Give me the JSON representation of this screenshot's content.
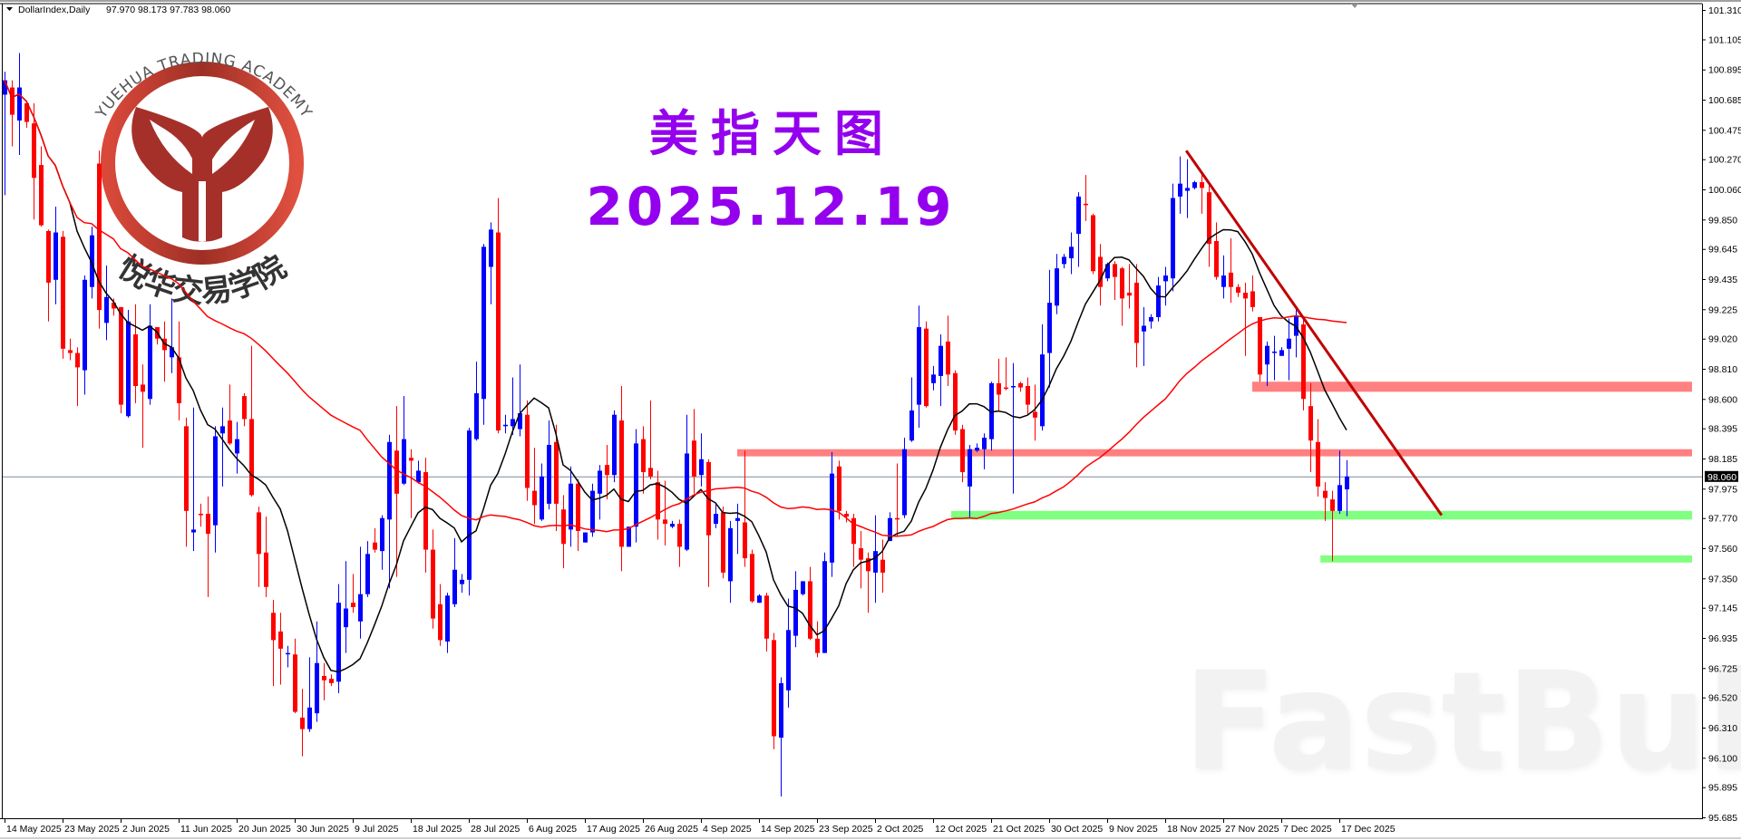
{
  "header": {
    "symbol": "DollarIndex,Daily",
    "ohlc_text": "97.970 98.173 97.783 98.060",
    "dropdown_icon": "triangle-down-icon"
  },
  "overlay": {
    "title_cn": "美指天图",
    "date": "2025.12.19",
    "title_color": "#9400ee",
    "logo_text_en": "YUEHUA TRADING ACADEMY",
    "logo_text_cn": "悦华交易学院",
    "logo_color": "#b5382c",
    "watermark": "FastBull"
  },
  "chart_data": {
    "type": "candlestick",
    "title": "",
    "xlabel": "",
    "ylabel": "",
    "ylim": [
      95.685,
      101.31
    ],
    "grid": false,
    "current_price": "98.060",
    "colors": {
      "bull": "#0000ff",
      "bear": "#ff0000",
      "ma_fast": "#000000",
      "ma_slow": "#ff0000",
      "resistance": "#ff8080",
      "support": "#80ff80",
      "trendline": "#c00000",
      "price_line": "#7f8c99"
    },
    "y_ticks": [
      "101.310",
      "101.105",
      "100.895",
      "100.685",
      "100.475",
      "100.270",
      "100.060",
      "99.850",
      "99.645",
      "99.435",
      "99.225",
      "99.020",
      "98.810",
      "98.600",
      "98.395",
      "98.185",
      "97.975",
      "97.770",
      "97.560",
      "97.350",
      "97.145",
      "96.935",
      "96.725",
      "96.520",
      "96.310",
      "96.100",
      "95.895",
      "95.685"
    ],
    "x_labels": [
      "14 May 2025",
      "23 May 2025",
      "2 Jun 2025",
      "11 Jun 2025",
      "20 Jun 2025",
      "30 Jun 2025",
      "9 Jul 2025",
      "18 Jul 2025",
      "28 Jul 2025",
      "6 Aug 2025",
      "17 Aug 2025",
      "26 Aug 2025",
      "4 Sep 2025",
      "14 Sep 2025",
      "23 Sep 2025",
      "2 Oct 2025",
      "12 Oct 2025",
      "21 Oct 2025",
      "30 Oct 2025",
      "9 Nov 2025",
      "18 Nov 2025",
      "27 Nov 2025",
      "7 Dec 2025",
      "17 Dec 2025"
    ],
    "ohlc_fields": [
      "open",
      "high",
      "low",
      "close"
    ],
    "ohlc": [
      [
        100.72,
        100.88,
        100.02,
        100.82
      ],
      [
        100.77,
        100.82,
        100.36,
        100.58
      ],
      [
        100.54,
        101.01,
        100.3,
        100.77
      ],
      [
        100.66,
        100.67,
        100.49,
        100.53
      ],
      [
        100.52,
        100.66,
        99.85,
        100.14
      ],
      [
        100.23,
        100.36,
        99.8,
        99.81
      ],
      [
        99.77,
        99.78,
        99.14,
        99.41
      ],
      [
        99.43,
        99.94,
        99.26,
        99.76
      ],
      [
        99.73,
        99.77,
        98.88,
        98.95
      ],
      [
        98.94,
        99.02,
        98.87,
        98.92
      ],
      [
        98.92,
        98.96,
        98.55,
        98.82
      ],
      [
        98.8,
        99.46,
        98.63,
        99.43
      ],
      [
        99.38,
        99.8,
        99.3,
        99.74
      ],
      [
        100.24,
        100.33,
        99.09,
        99.22
      ],
      [
        99.13,
        99.53,
        99.01,
        99.31
      ],
      [
        99.27,
        99.3,
        99.18,
        99.23
      ],
      [
        99.24,
        99.24,
        98.5,
        98.56
      ],
      [
        98.48,
        99.22,
        98.47,
        99.14
      ],
      [
        99.05,
        99.26,
        98.57,
        98.69
      ],
      [
        98.7,
        98.84,
        98.26,
        98.65
      ],
      [
        98.6,
        99.26,
        98.56,
        99.11
      ],
      [
        99.1,
        99.1,
        98.98,
        99.02
      ],
      [
        99.02,
        99.14,
        98.72,
        98.94
      ],
      [
        98.89,
        99.3,
        98.78,
        98.96
      ],
      [
        98.89,
        99.14,
        98.45,
        98.57
      ],
      [
        98.41,
        98.47,
        97.57,
        97.82
      ],
      [
        97.67,
        98.54,
        97.54,
        97.69
      ],
      [
        97.8,
        97.87,
        97.71,
        97.79
      ],
      [
        97.8,
        97.92,
        97.22,
        97.66
      ],
      [
        97.72,
        98.41,
        97.53,
        98.34
      ],
      [
        98.36,
        98.54,
        97.99,
        98.41
      ],
      [
        98.45,
        98.7,
        98.28,
        98.29
      ],
      [
        98.22,
        98.44,
        98.08,
        98.32
      ],
      [
        98.62,
        98.64,
        98.41,
        98.46
      ],
      [
        98.46,
        98.97,
        97.92,
        97.93
      ],
      [
        97.81,
        97.85,
        97.29,
        97.52
      ],
      [
        97.53,
        97.78,
        97.22,
        97.29
      ],
      [
        97.11,
        97.2,
        96.6,
        96.92
      ],
      [
        96.98,
        97.11,
        96.61,
        96.86
      ],
      [
        96.83,
        96.88,
        96.73,
        96.83
      ],
      [
        96.82,
        96.93,
        96.41,
        96.42
      ],
      [
        96.38,
        96.58,
        96.11,
        96.3
      ],
      [
        96.3,
        96.8,
        96.28,
        96.45
      ],
      [
        96.41,
        97.05,
        96.35,
        96.76
      ],
      [
        96.67,
        96.76,
        96.5,
        96.64
      ],
      [
        96.65,
        96.68,
        96.6,
        96.62
      ],
      [
        96.63,
        97.31,
        96.55,
        97.18
      ],
      [
        97.01,
        97.47,
        96.83,
        97.14
      ],
      [
        97.18,
        97.38,
        97.11,
        97.15
      ],
      [
        97.05,
        97.57,
        96.93,
        97.24
      ],
      [
        97.24,
        97.61,
        97.22,
        97.52
      ],
      [
        97.6,
        97.7,
        97.53,
        97.55
      ],
      [
        97.54,
        97.79,
        97.41,
        97.77
      ],
      [
        97.76,
        98.35,
        97.28,
        98.3
      ],
      [
        98.24,
        98.55,
        97.36,
        97.94
      ],
      [
        98.01,
        98.62,
        98.0,
        98.32
      ],
      [
        98.19,
        98.25,
        97.77,
        98.17
      ],
      [
        98.02,
        98.17,
        98.01,
        98.1
      ],
      [
        98.09,
        98.19,
        97.39,
        97.55
      ],
      [
        97.55,
        97.69,
        97.0,
        97.07
      ],
      [
        97.17,
        97.31,
        96.88,
        96.92
      ],
      [
        96.91,
        97.25,
        96.83,
        97.23
      ],
      [
        97.17,
        97.63,
        97.15,
        97.41
      ],
      [
        97.31,
        97.38,
        97.25,
        97.34
      ],
      [
        97.34,
        98.4,
        97.23,
        98.38
      ],
      [
        98.32,
        98.86,
        98.31,
        98.64
      ],
      [
        98.6,
        99.68,
        98.42,
        99.66
      ],
      [
        99.52,
        99.83,
        99.26,
        99.78
      ],
      [
        99.76,
        100.0,
        98.36,
        98.38
      ],
      [
        98.41,
        98.49,
        98.36,
        98.42
      ],
      [
        98.41,
        98.75,
        98.35,
        98.46
      ],
      [
        98.39,
        98.84,
        98.34,
        98.5
      ],
      [
        98.49,
        98.59,
        97.89,
        97.98
      ],
      [
        97.96,
        98.26,
        97.73,
        97.86
      ],
      [
        97.76,
        98.15,
        97.75,
        98.06
      ],
      [
        97.87,
        98.45,
        97.83,
        98.28
      ],
      [
        98.3,
        98.42,
        97.68,
        97.87
      ],
      [
        97.83,
        97.93,
        97.42,
        97.59
      ],
      [
        97.69,
        98.13,
        97.57,
        98.01
      ],
      [
        98.01,
        98.04,
        97.54,
        97.68
      ],
      [
        97.6,
        97.67,
        97.6,
        97.67
      ],
      [
        97.67,
        98.01,
        97.64,
        97.96
      ],
      [
        97.94,
        98.14,
        97.76,
        98.1
      ],
      [
        98.14,
        98.28,
        97.9,
        98.07
      ],
      [
        98.07,
        98.52,
        98.02,
        98.49
      ],
      [
        98.45,
        98.69,
        97.4,
        97.57
      ],
      [
        97.57,
        97.71,
        97.57,
        97.71
      ],
      [
        97.71,
        98.39,
        97.6,
        98.29
      ],
      [
        98.32,
        98.41,
        97.94,
        98.09
      ],
      [
        98.12,
        98.59,
        98.04,
        98.06
      ],
      [
        98.02,
        98.1,
        97.62,
        97.76
      ],
      [
        97.76,
        98.03,
        97.58,
        97.73
      ],
      [
        97.71,
        97.75,
        97.7,
        97.73
      ],
      [
        97.73,
        97.76,
        97.43,
        97.57
      ],
      [
        97.55,
        98.49,
        97.54,
        98.22
      ],
      [
        98.31,
        98.53,
        97.94,
        98.06
      ],
      [
        98.07,
        98.36,
        97.99,
        98.18
      ],
      [
        98.16,
        98.18,
        97.29,
        97.65
      ],
      [
        97.73,
        97.87,
        97.7,
        97.8
      ],
      [
        97.81,
        97.85,
        97.35,
        97.39
      ],
      [
        97.33,
        97.75,
        97.18,
        97.7
      ],
      [
        97.75,
        97.87,
        97.52,
        97.77
      ],
      [
        97.74,
        98.24,
        97.43,
        97.49
      ],
      [
        97.52,
        97.55,
        97.18,
        97.19
      ],
      [
        97.18,
        97.24,
        97.18,
        97.23
      ],
      [
        97.23,
        97.25,
        96.84,
        96.93
      ],
      [
        96.92,
        96.97,
        96.16,
        96.25
      ],
      [
        96.24,
        96.66,
        95.83,
        96.62
      ],
      [
        96.57,
        97.21,
        96.45,
        96.99
      ],
      [
        96.95,
        97.4,
        96.87,
        97.27
      ],
      [
        97.24,
        97.33,
        97.23,
        97.33
      ],
      [
        97.33,
        97.43,
        96.92,
        96.93
      ],
      [
        96.93,
        97.05,
        96.8,
        96.83
      ],
      [
        96.83,
        97.53,
        96.83,
        97.47
      ],
      [
        97.46,
        98.23,
        97.36,
        98.08
      ],
      [
        98.13,
        98.17,
        97.76,
        97.82
      ],
      [
        97.8,
        97.82,
        97.74,
        97.78
      ],
      [
        97.77,
        97.8,
        97.43,
        97.59
      ],
      [
        97.56,
        97.68,
        97.28,
        97.48
      ],
      [
        97.49,
        97.53,
        97.11,
        97.4
      ],
      [
        97.39,
        97.79,
        97.18,
        97.54
      ],
      [
        97.48,
        97.62,
        97.25,
        97.39
      ],
      [
        97.61,
        97.81,
        97.61,
        97.77
      ],
      [
        97.77,
        98.15,
        97.64,
        97.76
      ],
      [
        97.79,
        98.33,
        97.77,
        98.25
      ],
      [
        98.31,
        98.75,
        98.3,
        98.52
      ],
      [
        98.56,
        99.25,
        98.4,
        99.1
      ],
      [
        99.09,
        99.14,
        98.54,
        98.55
      ],
      [
        98.71,
        98.83,
        98.66,
        98.77
      ],
      [
        98.76,
        99.05,
        98.55,
        98.97
      ],
      [
        99.0,
        99.18,
        98.69,
        98.77
      ],
      [
        98.78,
        98.8,
        98.35,
        98.38
      ],
      [
        98.39,
        98.42,
        98.02,
        98.09
      ],
      [
        97.99,
        98.28,
        97.77,
        98.25
      ],
      [
        98.24,
        98.29,
        98.23,
        98.26
      ],
      [
        98.25,
        98.36,
        98.11,
        98.33
      ],
      [
        98.32,
        98.72,
        98.24,
        98.71
      ],
      [
        98.71,
        98.88,
        98.51,
        98.63
      ],
      [
        98.68,
        98.89,
        98.66,
        98.67
      ],
      [
        98.69,
        98.85,
        97.94,
        98.69
      ],
      [
        98.71,
        98.72,
        98.65,
        98.68
      ],
      [
        98.69,
        98.75,
        98.49,
        98.56
      ],
      [
        98.51,
        98.7,
        98.31,
        98.47
      ],
      [
        98.41,
        99.12,
        98.38,
        98.91
      ],
      [
        98.92,
        99.5,
        98.68,
        99.27
      ],
      [
        99.25,
        99.61,
        99.19,
        99.51
      ],
      [
        99.54,
        99.61,
        99.51,
        99.59
      ],
      [
        99.58,
        99.76,
        99.47,
        99.66
      ],
      [
        99.75,
        100.04,
        99.52,
        100.01
      ],
      [
        99.96,
        100.16,
        99.84,
        99.95
      ],
      [
        99.88,
        99.89,
        99.47,
        99.49
      ],
      [
        99.59,
        99.68,
        99.25,
        99.38
      ],
      [
        99.44,
        99.55,
        99.42,
        99.54
      ],
      [
        99.54,
        99.56,
        99.29,
        99.45
      ],
      [
        99.51,
        99.52,
        99.11,
        99.3
      ],
      [
        99.34,
        99.54,
        99.23,
        99.32
      ],
      [
        99.41,
        99.54,
        98.82,
        98.99
      ],
      [
        99.07,
        99.24,
        98.83,
        99.11
      ],
      [
        99.14,
        99.19,
        99.09,
        99.17
      ],
      [
        99.17,
        99.45,
        99.14,
        99.39
      ],
      [
        99.42,
        99.52,
        99.25,
        99.46
      ],
      [
        99.44,
        100.1,
        99.35,
        100.0
      ],
      [
        100.01,
        100.29,
        99.89,
        100.1
      ],
      [
        100.05,
        100.27,
        99.86,
        100.07
      ],
      [
        100.07,
        100.12,
        100.06,
        100.11
      ],
      [
        100.11,
        100.17,
        99.89,
        100.07
      ],
      [
        100.04,
        100.11,
        99.52,
        99.68
      ],
      [
        99.7,
        99.83,
        99.43,
        99.45
      ],
      [
        99.38,
        99.6,
        99.3,
        99.46
      ],
      [
        99.48,
        99.72,
        99.27,
        99.38
      ],
      [
        99.38,
        99.4,
        99.31,
        99.34
      ],
      [
        99.34,
        99.41,
        98.9,
        99.3
      ],
      [
        99.35,
        99.46,
        99.21,
        99.24
      ],
      [
        99.17,
        99.17,
        98.72,
        98.77
      ],
      [
        98.84,
        99.0,
        98.69,
        98.97
      ],
      [
        98.93,
        99.04,
        98.73,
        98.93
      ],
      [
        98.9,
        98.96,
        98.9,
        98.94
      ],
      [
        98.95,
        99.16,
        98.73,
        99.02
      ],
      [
        99.04,
        99.24,
        98.89,
        99.18
      ],
      [
        99.12,
        99.17,
        98.52,
        98.6
      ],
      [
        98.55,
        98.71,
        98.09,
        98.31
      ],
      [
        98.3,
        98.46,
        97.92,
        97.99
      ],
      [
        97.96,
        98.02,
        97.75,
        97.91
      ],
      [
        97.9,
        97.96,
        97.47,
        97.82
      ],
      [
        97.82,
        98.24,
        97.8,
        98.0
      ],
      [
        97.97,
        98.173,
        97.783,
        98.06
      ]
    ],
    "zones": [
      {
        "type": "resistance",
        "price_top": 98.72,
        "price_bottom": 98.65,
        "from_bar": 172
      },
      {
        "type": "resistance",
        "price_top": 98.25,
        "price_bottom": 98.2,
        "from_bar": 101
      },
      {
        "type": "support",
        "price_top": 97.82,
        "price_bottom": 97.76,
        "from_bar": 130.5
      },
      {
        "type": "support",
        "price_top": 97.51,
        "price_bottom": 97.46,
        "from_bar": 181.4
      }
    ],
    "trendline": {
      "from_bar": 162.9,
      "from_price": 100.33,
      "to_bar": 198.1,
      "to_price": 97.79
    }
  }
}
